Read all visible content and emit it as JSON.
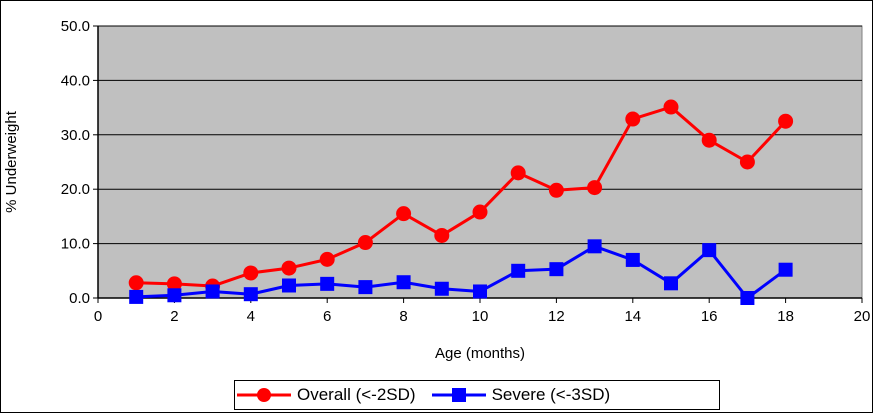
{
  "chart_data": {
    "type": "line",
    "title": "",
    "xlabel": "Age (months)",
    "ylabel": "% Underweight",
    "xlim": [
      0,
      20
    ],
    "ylim": [
      0,
      50
    ],
    "x_ticks": [
      "0",
      "2",
      "4",
      "6",
      "8",
      "10",
      "12",
      "14",
      "16",
      "18",
      "20"
    ],
    "y_ticks": [
      "0.0",
      "10.0",
      "20.0",
      "30.0",
      "40.0",
      "50.0"
    ],
    "grid": true,
    "plot_background": "#c0c0c0",
    "legend_position": "bottom",
    "series": [
      {
        "name": "Overall (<-2SD)",
        "color": "#ff0000",
        "marker": "circle",
        "x": [
          1,
          2,
          3,
          4,
          5,
          6,
          7,
          8,
          9,
          10,
          11,
          12,
          13,
          14,
          15,
          16,
          17,
          18
        ],
        "y": [
          2.8,
          2.6,
          2.2,
          4.6,
          5.5,
          7.1,
          10.2,
          15.5,
          11.5,
          15.8,
          23.0,
          19.8,
          20.3,
          32.9,
          35.1,
          29.0,
          25.0,
          32.5
        ]
      },
      {
        "name": "Severe (<-3SD)",
        "color": "#0000ff",
        "marker": "square",
        "x": [
          1,
          2,
          3,
          4,
          5,
          6,
          7,
          8,
          9,
          10,
          11,
          12,
          13,
          14,
          15,
          16,
          17,
          18
        ],
        "y": [
          0.2,
          0.5,
          1.2,
          0.7,
          2.3,
          2.6,
          2.0,
          2.9,
          1.7,
          1.2,
          5.0,
          5.3,
          9.5,
          7.0,
          2.7,
          8.8,
          0.0,
          5.2
        ]
      }
    ]
  }
}
